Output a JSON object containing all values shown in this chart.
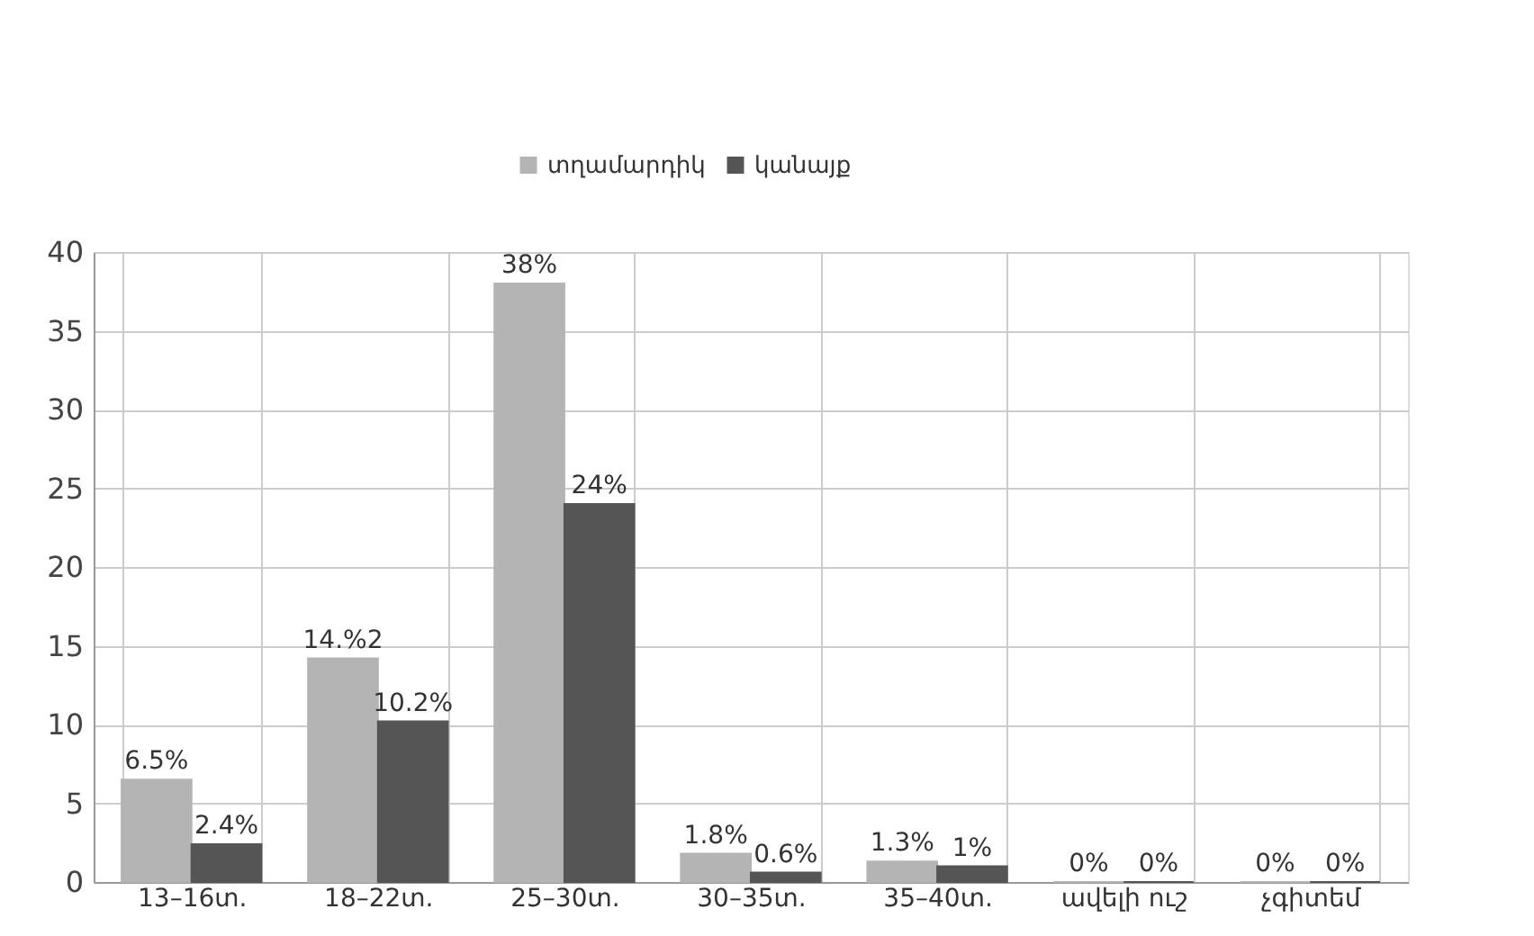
{
  "chart_data": {
    "type": "bar",
    "categories": [
      "13–16տ.",
      "18–22տ.",
      "25–30տ.",
      "30–35տ.",
      "35–40տ.",
      "ավելի ուշ",
      "չգիտեմ"
    ],
    "series": [
      {
        "name": "տղամարդիկ",
        "color": "#b4b4b4",
        "values": [
          6.5,
          14.2,
          38,
          1.8,
          1.3,
          0,
          0
        ],
        "value_labels": [
          "6.5%",
          "14.%2",
          "38%",
          "1.8%",
          "1.3%",
          "0%",
          "0%"
        ]
      },
      {
        "name": "կանայք",
        "color": "#555555",
        "values": [
          2.4,
          10.2,
          24,
          0.6,
          1,
          0,
          0
        ],
        "value_labels": [
          "2.4%",
          "10.2%",
          "24%",
          "0.6%",
          "1%",
          "0%",
          "0%"
        ]
      }
    ],
    "ylim": [
      0,
      40
    ],
    "yticks": [
      0,
      5,
      10,
      15,
      20,
      25,
      30,
      35,
      40
    ],
    "grid": true,
    "legend": "top"
  }
}
